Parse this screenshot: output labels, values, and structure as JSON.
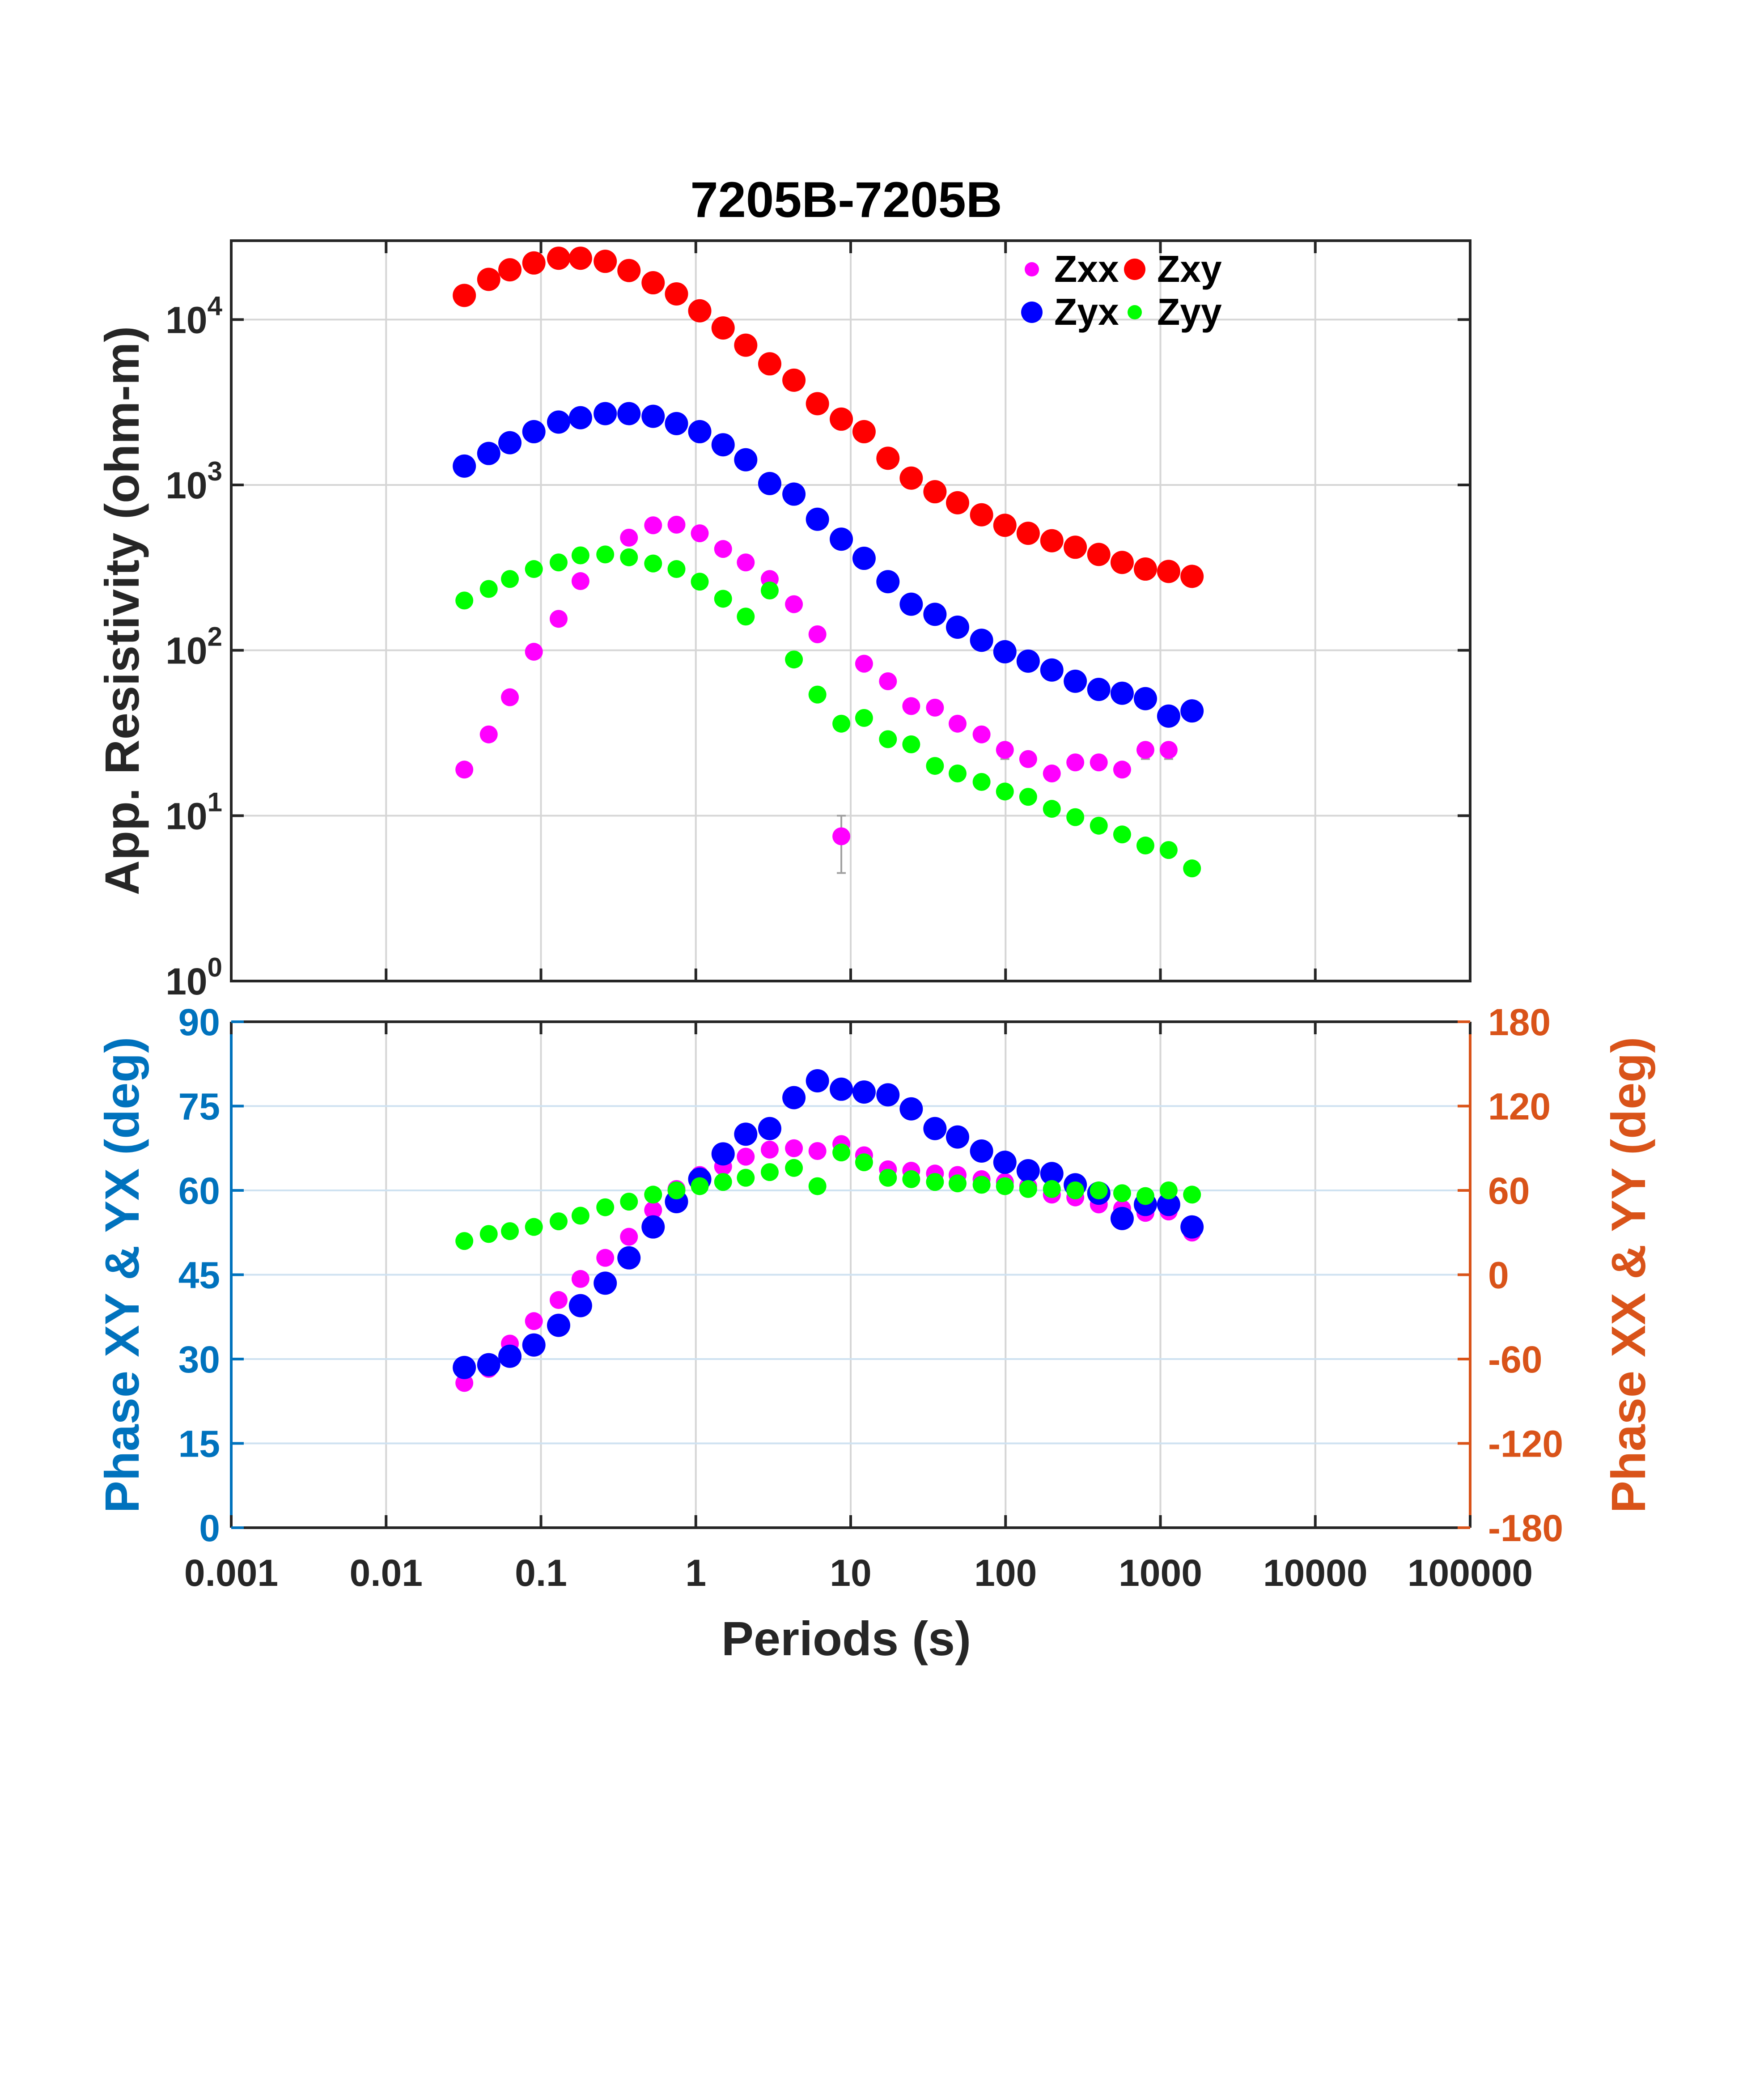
{
  "chart_data": [
    {
      "type": "scatter",
      "title": "7205B-7205B",
      "ylabel": "App. Resistivity (ohm-m)",
      "xlabel": "",
      "x_scale": "log",
      "y_scale": "log",
      "xlim": [
        0.001,
        100000
      ],
      "ylim": [
        1,
        30000
      ],
      "y_ticks": [
        {
          "value": 1,
          "base": "10",
          "exp": "0"
        },
        {
          "value": 10,
          "base": "10",
          "exp": "1"
        },
        {
          "value": 100,
          "base": "10",
          "exp": "2"
        },
        {
          "value": 1000,
          "base": "10",
          "exp": "3"
        },
        {
          "value": 10000,
          "base": "10",
          "exp": "4"
        }
      ],
      "grid": true,
      "legend_position": "top-right",
      "x": [
        0.032,
        0.046,
        0.063,
        0.09,
        0.13,
        0.18,
        0.26,
        0.37,
        0.53,
        0.75,
        1.06,
        1.5,
        2.1,
        3.0,
        4.3,
        6.1,
        8.7,
        12.2,
        17.4,
        24.6,
        35,
        49,
        70,
        99,
        140,
        199,
        282,
        400,
        566,
        800,
        1130,
        1600
      ],
      "series": [
        {
          "name": "Zxx",
          "color": "#ff00ff",
          "values": [
            19,
            31,
            52,
            98,
            155,
            262,
            null,
            480,
            570,
            575,
            510,
            410,
            340,
            270,
            190,
            125,
            7.5,
            83,
            65,
            46,
            45,
            36,
            31,
            25,
            22,
            18,
            21,
            21,
            19,
            25,
            25,
            null
          ],
          "errors": {
            "7.5": [
              4.5,
              10
            ],
            "25": [
              22,
              27
            ]
          }
        },
        {
          "name": "Zxy",
          "color": "#ff0000",
          "values": [
            14000,
            17500,
            20000,
            22000,
            23500,
            23500,
            22500,
            19800,
            16700,
            14300,
            11300,
            8900,
            7000,
            5400,
            4300,
            3100,
            2500,
            2100,
            1450,
            1100,
            910,
            780,
            660,
            570,
            510,
            460,
            420,
            380,
            340,
            310,
            300,
            280
          ]
        },
        {
          "name": "Zyx",
          "color": "#0000ff",
          "values": [
            1300,
            1550,
            1800,
            2100,
            2400,
            2550,
            2700,
            2700,
            2600,
            2350,
            2100,
            1750,
            1420,
            1020,
            880,
            620,
            470,
            360,
            260,
            190,
            165,
            138,
            115,
            98,
            86,
            76,
            65,
            58,
            55,
            51,
            40,
            43
          ]
        },
        {
          "name": "Zyy",
          "color": "#00ff00",
          "values": [
            200,
            235,
            270,
            310,
            340,
            375,
            380,
            365,
            335,
            310,
            260,
            205,
            160,
            230,
            88,
            54,
            36,
            39,
            29,
            27,
            20,
            18,
            16,
            14,
            13,
            11,
            9.8,
            8.7,
            7.7,
            6.6,
            6.2,
            4.8
          ]
        }
      ]
    },
    {
      "type": "scatter",
      "title": "",
      "xlabel": "Periods (s)",
      "ylabel": "Phase XY & YX (deg)",
      "ylabel_right": "Phase XX & YY (deg)",
      "x_scale": "log",
      "xlim": [
        0.001,
        100000
      ],
      "x_ticks": [
        "0.001",
        "0.01",
        "0.1",
        "1",
        "10",
        "100",
        "1000",
        "10000",
        "100000"
      ],
      "ylim_left": [
        0,
        90
      ],
      "ylim_right": [
        -180,
        180
      ],
      "y_ticks_left": [
        "0",
        "15",
        "30",
        "45",
        "60",
        "75",
        "90"
      ],
      "y_ticks_right": [
        "-180",
        "-120",
        "-60",
        "0",
        "60",
        "120",
        "180"
      ],
      "left_axis_color": "#0072bd",
      "right_axis_color": "#d95319",
      "grid": true,
      "x": [
        0.032,
        0.046,
        0.063,
        0.09,
        0.13,
        0.18,
        0.26,
        0.37,
        0.53,
        0.75,
        1.06,
        1.5,
        2.1,
        3.0,
        4.3,
        6.1,
        8.7,
        12.2,
        17.4,
        24.6,
        35,
        49,
        70,
        99,
        140,
        199,
        282,
        400,
        566,
        800,
        1130,
        1600
      ],
      "series": [
        {
          "name": "Zxx",
          "color": "#ff00ff",
          "axis": "right",
          "values": [
            -77,
            -67,
            -49,
            -33,
            -18,
            -3,
            12,
            27,
            46,
            61,
            71,
            77,
            84,
            89,
            90,
            88,
            93,
            85,
            75,
            74,
            72,
            71,
            68,
            66,
            63,
            57,
            55,
            50,
            47,
            44,
            45,
            30
          ]
        },
        {
          "name": "Zxy",
          "color": "#ff0000",
          "axis": "left",
          "values": []
        },
        {
          "name": "Zyx",
          "color": "#0000ff",
          "axis": "left",
          "values": [
            28.5,
            29,
            30.5,
            32.5,
            36,
            39.5,
            43.5,
            48,
            53.5,
            58,
            62,
            66.5,
            70,
            71,
            76.5,
            79.5,
            78,
            77.5,
            77,
            74.5,
            71,
            69.5,
            67,
            65,
            63.5,
            63,
            61,
            59.5,
            55,
            57.5,
            57.5,
            53.5
          ]
        },
        {
          "name": "Zyy",
          "color": "#00ff00",
          "axis": "right",
          "values": [
            24,
            29,
            31,
            34,
            38,
            42,
            48,
            52,
            57,
            60,
            63,
            66,
            69,
            73,
            76,
            63,
            87,
            80,
            69,
            68,
            66,
            65,
            64,
            63,
            61,
            61,
            60,
            60,
            58,
            56,
            60,
            57
          ]
        }
      ]
    }
  ]
}
